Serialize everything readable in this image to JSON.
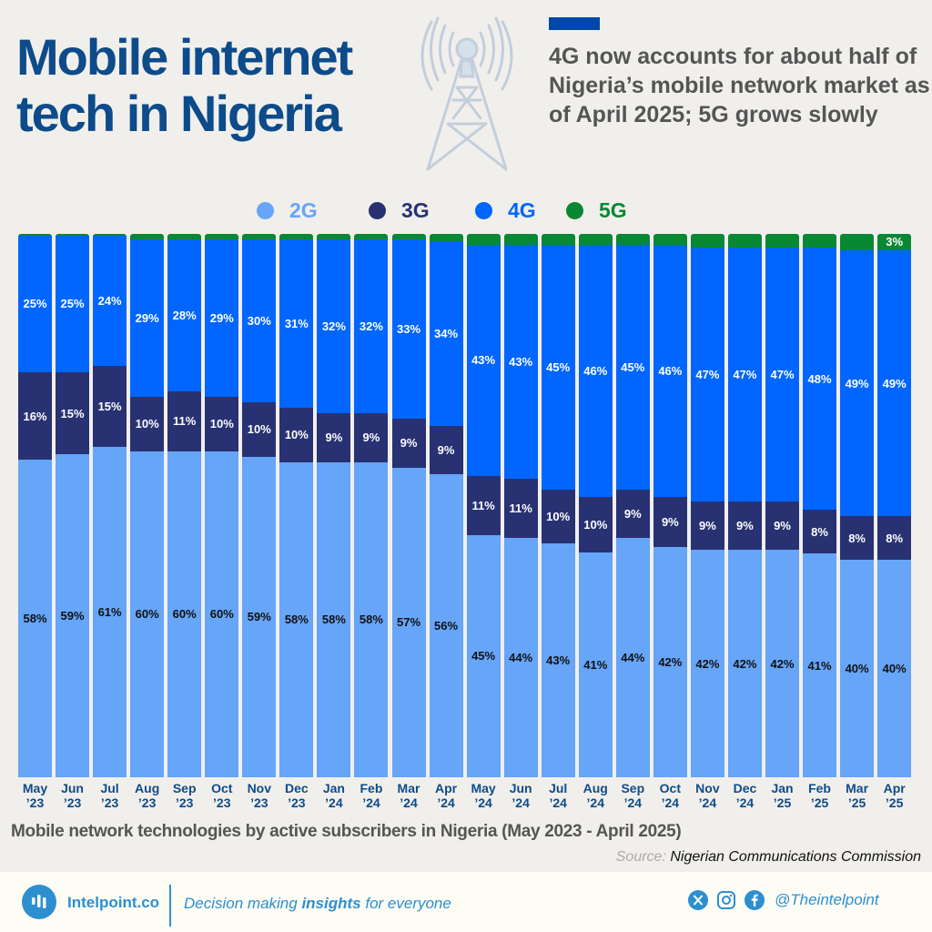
{
  "header": {
    "title_line1": "Mobile internet",
    "title_line2": "tech in Nigeria",
    "subtitle": "4G now accounts for about half of Nigeria’s mobile network market as of April 2025; 5G grows slowly",
    "icon": "cell-tower-icon"
  },
  "colors": {
    "2G": "#66a5f7",
    "3G": "#283272",
    "4G": "#0066ff",
    "5G": "#098833",
    "title": "#0d4b8a",
    "brand": "#2d8fd0",
    "background": "#f1efec"
  },
  "legend": [
    {
      "label": "2G",
      "color": "#66a5f7"
    },
    {
      "label": "3G",
      "color": "#283272"
    },
    {
      "label": "4G",
      "color": "#0066ff"
    },
    {
      "label": "5G",
      "color": "#098833"
    }
  ],
  "chart_data": {
    "type": "bar",
    "stacked": true,
    "normalized": true,
    "title": "Mobile network technologies by active subscribers in Nigeria (May 2023 - April 2025)",
    "xlabel": "",
    "ylabel": "",
    "ylim": [
      0,
      100
    ],
    "grid": false,
    "legend_position": "top",
    "categories": [
      "May ’23",
      "Jun ’23",
      "Jul ’23",
      "Aug ’23",
      "Sep ’23",
      "Oct ’23",
      "Nov ’23",
      "Dec ’23",
      "Jan ’24",
      "Feb ’24",
      "Mar ’24",
      "Apr ’24",
      "May ’24",
      "Jun ’24",
      "Jul ’24",
      "Aug ’24",
      "Sep ’24",
      "Oct ’24",
      "Nov ’24",
      "Dec ’24",
      "Jan ’25",
      "Feb ’25",
      "Mar ’25",
      "Apr ’25"
    ],
    "category_lines": [
      [
        "May",
        "’23"
      ],
      [
        "Jun",
        "’23"
      ],
      [
        "Jul",
        "’23"
      ],
      [
        "Aug",
        "’23"
      ],
      [
        "Sep",
        "’23"
      ],
      [
        "Oct",
        "’23"
      ],
      [
        "Nov",
        "’23"
      ],
      [
        "Dec",
        "’23"
      ],
      [
        "Jan",
        "’24"
      ],
      [
        "Feb",
        "’24"
      ],
      [
        "Mar",
        "’24"
      ],
      [
        "Apr",
        "’24"
      ],
      [
        "May",
        "’24"
      ],
      [
        "Jun",
        "’24"
      ],
      [
        "Jul",
        "’24"
      ],
      [
        "Aug",
        "’24"
      ],
      [
        "Sep",
        "’24"
      ],
      [
        "Oct",
        "’24"
      ],
      [
        "Nov",
        "’24"
      ],
      [
        "Dec",
        "’24"
      ],
      [
        "Jan",
        "’25"
      ],
      [
        "Feb",
        "’25"
      ],
      [
        "Mar",
        "’25"
      ],
      [
        "Apr",
        "’25"
      ]
    ],
    "series": [
      {
        "name": "2G",
        "values": [
          58,
          59,
          61,
          60,
          60,
          60,
          59,
          58,
          58,
          58,
          57,
          56,
          45,
          44,
          43,
          41,
          44,
          42,
          42,
          42,
          42,
          41,
          40,
          40
        ]
      },
      {
        "name": "3G",
        "values": [
          16,
          15,
          15,
          10,
          11,
          10,
          10,
          10,
          9,
          9,
          9,
          9,
          11,
          11,
          10,
          10,
          9,
          9,
          9,
          9,
          9,
          8,
          8,
          8
        ]
      },
      {
        "name": "4G",
        "values": [
          25,
          25,
          24,
          29,
          28,
          29,
          30,
          31,
          32,
          32,
          33,
          34,
          43,
          43,
          45,
          46,
          45,
          46,
          47,
          47,
          47,
          48,
          49,
          49
        ]
      },
      {
        "name": "5G",
        "values": [
          0.3,
          0.3,
          0.3,
          1,
          1,
          1,
          1,
          1,
          1,
          1,
          1,
          1.5,
          2,
          2,
          2,
          2,
          2,
          2,
          2.5,
          2.5,
          2.5,
          2.5,
          3,
          3
        ]
      }
    ],
    "labels_shown": {
      "5G": [
        "",
        "",
        "",
        "",
        "",
        "",
        "",
        "",
        "",
        "",
        "",
        "",
        "",
        "",
        "",
        "",
        "",
        "",
        "",
        "",
        "",
        "",
        "",
        "3%"
      ]
    }
  },
  "chart_caption": "Mobile network technologies by active subscribers in Nigeria (May 2023 - April 2025)",
  "source": {
    "label": "Source:",
    "value": "Nigerian Communications Commission"
  },
  "footer": {
    "brand": "Intelpoint.co",
    "tagline_pre": "Decision making ",
    "tagline_bold": "insights",
    "tagline_post": " for everyone",
    "handle": "@Theintelpoint",
    "social_icons": [
      "x-icon",
      "instagram-icon",
      "facebook-icon"
    ]
  }
}
